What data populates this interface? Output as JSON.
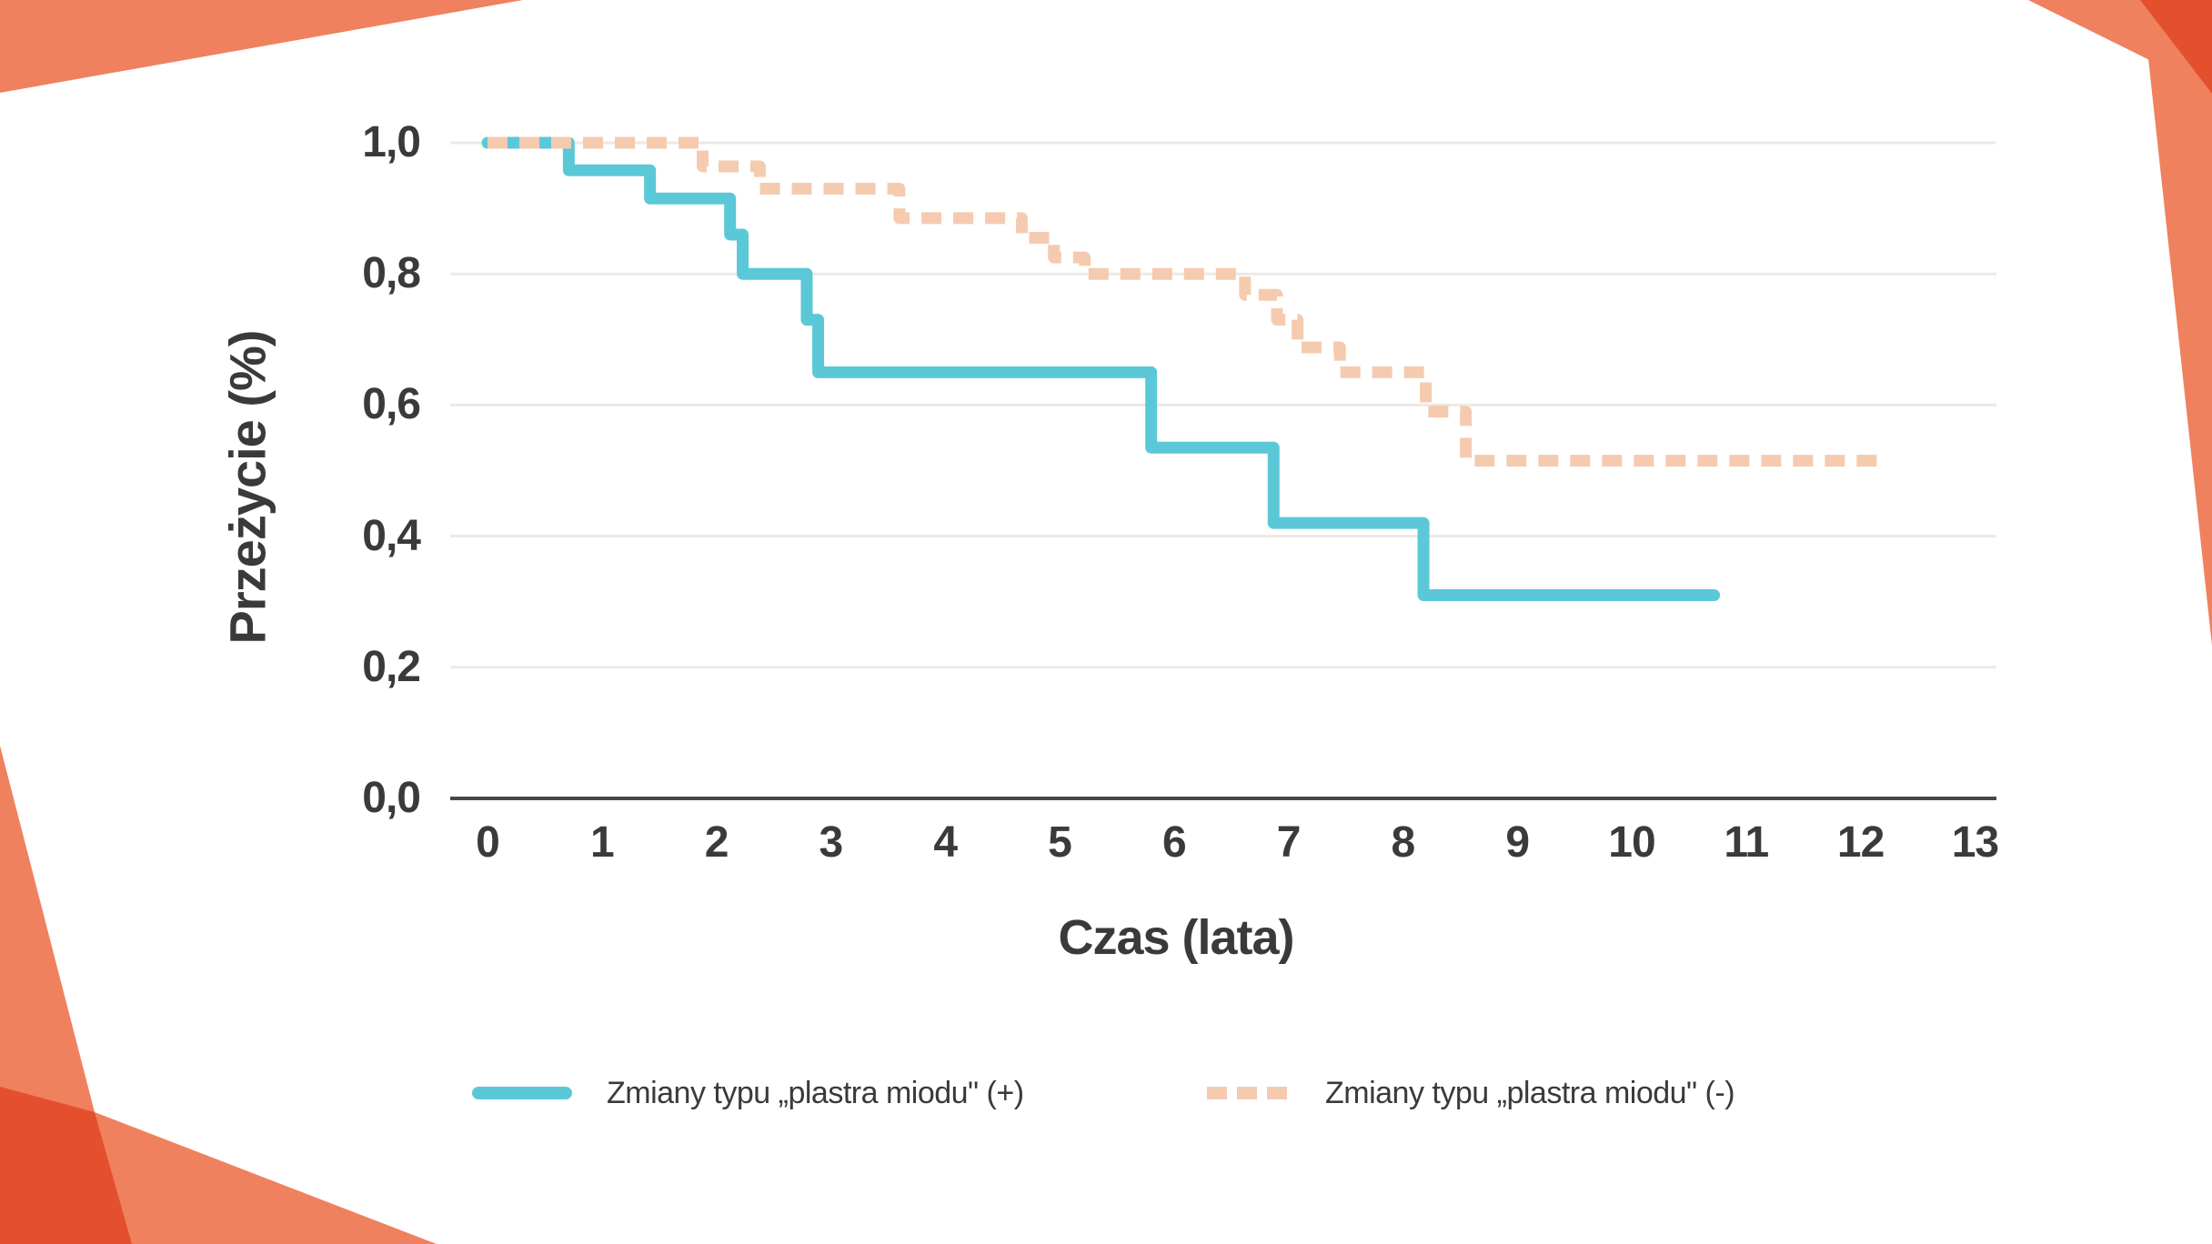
{
  "page": {
    "type": "presentation-slide-survival-chart",
    "background": "#FFFFFF"
  },
  "colors": {
    "series_positive": "#5BC8D8",
    "series_negative": "#F5CBB0",
    "grid": "#ECEAE5",
    "axis": "#474747",
    "text": "#3A3A3A",
    "corner_salmon": "#F0815F",
    "corner_red": "#E4502E"
  },
  "chart_data": {
    "type": "line",
    "subtype": "kaplan-meier-step",
    "title": "",
    "xlabel": "Czas (lata)",
    "ylabel": "Przeżycie (%)",
    "xlim": [
      0,
      13
    ],
    "ylim": [
      0.0,
      1.0
    ],
    "grid": "horizontal-only",
    "legend_position": "bottom",
    "xticks": [
      {
        "t": 0,
        "label": "0"
      },
      {
        "t": 1,
        "label": "1"
      },
      {
        "t": 2,
        "label": "2"
      },
      {
        "t": 3,
        "label": "3"
      },
      {
        "t": 4,
        "label": "4"
      },
      {
        "t": 5,
        "label": "5"
      },
      {
        "t": 6,
        "label": "6"
      },
      {
        "t": 7,
        "label": "7"
      },
      {
        "t": 8,
        "label": "8"
      },
      {
        "t": 9,
        "label": "9"
      },
      {
        "t": 10,
        "label": "10"
      },
      {
        "t": 11,
        "label": "11"
      },
      {
        "t": 12,
        "label": "12"
      },
      {
        "t": 13,
        "label": "13"
      }
    ],
    "yticks": [
      {
        "v": 0.0,
        "label": "0,0"
      },
      {
        "v": 0.2,
        "label": "0,2"
      },
      {
        "v": 0.4,
        "label": "0,4"
      },
      {
        "v": 0.6,
        "label": "0,6"
      },
      {
        "v": 0.8,
        "label": "0,8"
      },
      {
        "v": 1.0,
        "label": "1,0"
      }
    ],
    "series": [
      {
        "name": "Zmiany typu „plastra miodu\" (+)",
        "style": "solid",
        "color": "#5BC8D8",
        "points": [
          [
            0,
            1.0
          ],
          [
            0.71,
            0.958
          ],
          [
            1.42,
            0.915
          ],
          [
            2.12,
            0.86
          ],
          [
            2.23,
            0.8
          ],
          [
            2.79,
            0.73
          ],
          [
            2.89,
            0.65
          ],
          [
            5.8,
            0.535
          ],
          [
            6.87,
            0.42
          ],
          [
            8.18,
            0.31
          ]
        ],
        "end_time": 10.72
      },
      {
        "name": "Zmiany typu „plastra miodu\" (-)",
        "style": "dashed",
        "color": "#F5CBB0",
        "points": [
          [
            0,
            1.0
          ],
          [
            1.88,
            0.964
          ],
          [
            2.38,
            0.93
          ],
          [
            3.6,
            0.885
          ],
          [
            4.67,
            0.855
          ],
          [
            4.95,
            0.825
          ],
          [
            5.22,
            0.8
          ],
          [
            6.62,
            0.768
          ],
          [
            6.9,
            0.73
          ],
          [
            7.08,
            0.688
          ],
          [
            7.45,
            0.65
          ],
          [
            8.2,
            0.59
          ],
          [
            8.55,
            0.515
          ]
        ],
        "end_time": 12.15
      }
    ]
  },
  "legend": {
    "entries": [
      {
        "label": "Zmiany typu „plastra miodu\" (+)",
        "style": "solid"
      },
      {
        "label": "Zmiany typu „plastra miodu\" (-)",
        "style": "dashed"
      }
    ]
  }
}
